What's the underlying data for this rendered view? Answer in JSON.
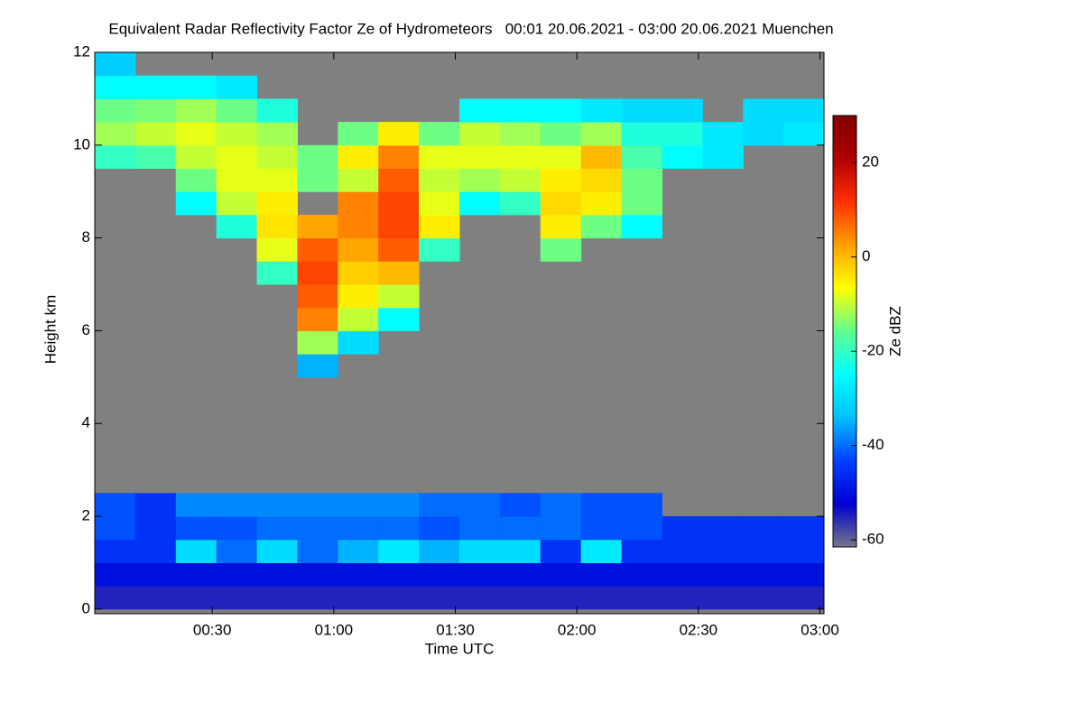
{
  "chart_data": {
    "type": "heatmap",
    "title": "Equivalent Radar Reflectivity Factor Ze of Hydrometeors   00:01 20.06.2021 - 03:00 20.06.2021 Muenchen",
    "xlabel": "Time UTC",
    "ylabel": "Height km",
    "colorbar_label": "Ze dBZ",
    "xlim": [
      1,
      181
    ],
    "ylim": [
      -0.1,
      12
    ],
    "clim": [
      -61.5,
      30
    ],
    "xticks": [
      {
        "value": 30,
        "label": "00:30"
      },
      {
        "value": 60,
        "label": "01:00"
      },
      {
        "value": 90,
        "label": "01:30"
      },
      {
        "value": 120,
        "label": "02:00"
      },
      {
        "value": 150,
        "label": "02:30"
      },
      {
        "value": 180,
        "label": "03:00"
      }
    ],
    "yticks": [
      0,
      2,
      4,
      6,
      8,
      10,
      12
    ],
    "cticks": [
      -60,
      -40,
      -20,
      0,
      20
    ],
    "background": "#808080",
    "colormap": [
      "#76768a",
      "#0000d0",
      "#0040ff",
      "#00c0ff",
      "#00ffff",
      "#60ff90",
      "#ffff00",
      "#ffa000",
      "#ff3000",
      "#b00000",
      "#800000"
    ],
    "x_bins": [
      1,
      11,
      21,
      31,
      41,
      51,
      61,
      71,
      81,
      91,
      101,
      111,
      121,
      131,
      141,
      151,
      161,
      171,
      181
    ],
    "y_bins": [
      0,
      0.5,
      1,
      1.5,
      2,
      2.5,
      3,
      3.5,
      4,
      4.5,
      5,
      5.5,
      6,
      6.5,
      7,
      7.5,
      8,
      8.5,
      9,
      9.5,
      10,
      10.5,
      11,
      11.5,
      12
    ],
    "z": [
      [
        -55,
        -55,
        -55,
        -55,
        -55,
        -55,
        -55,
        -55,
        -55,
        -55,
        -55,
        -55,
        -55,
        -55,
        -55,
        -55,
        -55,
        -55
      ],
      [
        -50,
        -50,
        -50,
        -50,
        -50,
        -50,
        -50,
        -50,
        -50,
        -50,
        -50,
        -50,
        -50,
        -50,
        -50,
        -50,
        -50,
        -50
      ],
      [
        -45,
        -45,
        -30,
        -40,
        -30,
        -40,
        -35,
        -28,
        -35,
        -30,
        -30,
        -45,
        -28,
        -45,
        -45,
        -45,
        -45,
        -45
      ],
      [
        -42,
        -45,
        -42,
        -42,
        -40,
        -40,
        -40,
        -40,
        -42,
        -40,
        -40,
        -40,
        -42,
        -42,
        -45,
        -45,
        -45,
        -45
      ],
      [
        -42,
        -45,
        -38,
        -38,
        -38,
        -38,
        -38,
        -38,
        -40,
        -40,
        -42,
        -40,
        -42,
        -42,
        null,
        null,
        null,
        null
      ],
      [
        null,
        null,
        null,
        null,
        null,
        null,
        null,
        null,
        null,
        null,
        null,
        null,
        null,
        null,
        null,
        null,
        null,
        null
      ],
      [
        null,
        null,
        null,
        null,
        null,
        null,
        null,
        null,
        null,
        null,
        null,
        null,
        null,
        null,
        null,
        null,
        null,
        null
      ],
      [
        null,
        null,
        null,
        null,
        null,
        null,
        null,
        null,
        null,
        null,
        null,
        null,
        null,
        null,
        null,
        null,
        null,
        null
      ],
      [
        null,
        null,
        null,
        null,
        null,
        null,
        null,
        null,
        null,
        null,
        null,
        null,
        null,
        null,
        null,
        null,
        null,
        null
      ],
      [
        null,
        null,
        null,
        null,
        null,
        null,
        null,
        null,
        null,
        null,
        null,
        null,
        null,
        null,
        null,
        null,
        null,
        null
      ],
      [
        null,
        null,
        null,
        null,
        null,
        -35,
        null,
        null,
        null,
        null,
        null,
        null,
        null,
        null,
        null,
        null,
        null,
        null
      ],
      [
        null,
        null,
        null,
        null,
        null,
        -12,
        -30,
        null,
        null,
        null,
        null,
        null,
        null,
        null,
        null,
        null,
        null,
        null
      ],
      [
        null,
        null,
        null,
        null,
        null,
        5,
        -10,
        -25,
        null,
        null,
        null,
        null,
        null,
        null,
        null,
        null,
        null,
        null
      ],
      [
        null,
        null,
        null,
        null,
        null,
        8,
        -5,
        -10,
        null,
        null,
        null,
        null,
        null,
        null,
        null,
        null,
        null,
        null
      ],
      [
        null,
        null,
        null,
        null,
        -20,
        10,
        -2,
        0,
        null,
        null,
        null,
        null,
        null,
        null,
        null,
        null,
        null,
        null
      ],
      [
        null,
        null,
        null,
        null,
        -8,
        8,
        2,
        8,
        -20,
        null,
        null,
        -15,
        null,
        null,
        null,
        null,
        null,
        null
      ],
      [
        null,
        null,
        null,
        -22,
        -4,
        2,
        5,
        10,
        -5,
        null,
        null,
        -5,
        -15,
        -25,
        null,
        null,
        null,
        null
      ],
      [
        null,
        null,
        -25,
        -10,
        -5,
        null,
        5,
        10,
        -8,
        -25,
        -20,
        -3,
        -5,
        -15,
        null,
        null,
        null,
        null
      ],
      [
        null,
        null,
        -15,
        -8,
        -8,
        -15,
        -10,
        8,
        -10,
        -12,
        -10,
        -5,
        -3,
        -15,
        null,
        null,
        null,
        null
      ],
      [
        -20,
        -18,
        -10,
        -8,
        -10,
        -15,
        -5,
        5,
        -8,
        -8,
        -8,
        -8,
        0,
        -18,
        -25,
        -28,
        null,
        null
      ],
      [
        -12,
        -10,
        -8,
        -10,
        -12,
        null,
        -15,
        -5,
        -15,
        -10,
        -12,
        -15,
        -12,
        -22,
        -22,
        -28,
        -30,
        -28
      ],
      [
        -15,
        -14,
        -12,
        -15,
        -22,
        null,
        null,
        null,
        null,
        -25,
        -25,
        -25,
        -28,
        -30,
        -30,
        null,
        -30,
        -30
      ],
      [
        -25,
        -25,
        -25,
        -28,
        null,
        null,
        null,
        null,
        null,
        null,
        null,
        null,
        null,
        null,
        null,
        null,
        null,
        null
      ],
      [
        -32,
        null,
        null,
        null,
        null,
        null,
        null,
        null,
        null,
        null,
        null,
        null,
        null,
        null,
        null,
        null,
        null,
        null
      ]
    ]
  }
}
